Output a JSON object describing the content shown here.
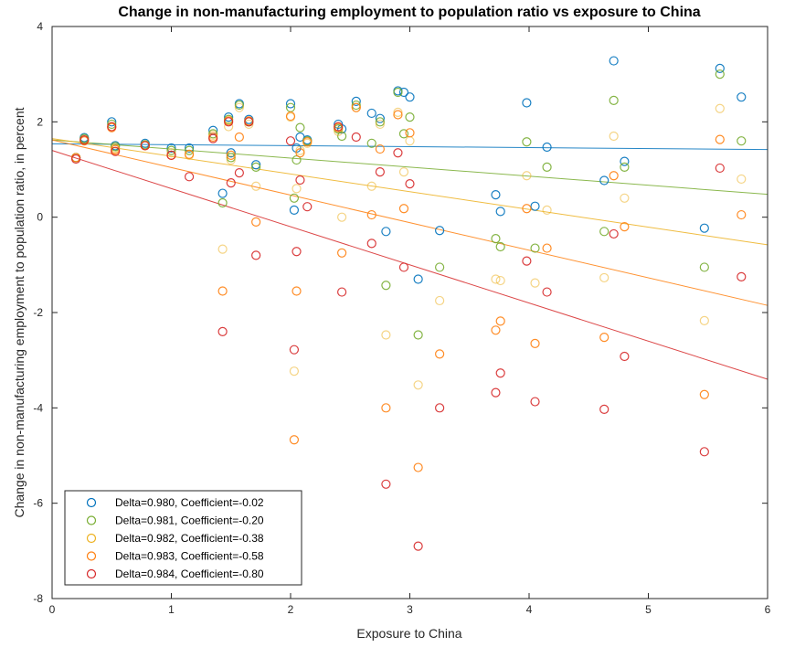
{
  "chart_data": {
    "type": "scatter",
    "title": "Change in non-manufacturing employment to population ratio vs exposure to China",
    "xlabel": "Exposure to China",
    "ylabel": "Change in non-manufacturing employment to population ratio, in percent",
    "xlim": [
      0,
      6
    ],
    "ylim": [
      -8,
      4
    ],
    "xticks": [
      "0",
      "1",
      "2",
      "3",
      "4",
      "5",
      "6"
    ],
    "yticks": [
      "-8",
      "-6",
      "-4",
      "-2",
      "0",
      "2",
      "4"
    ],
    "grid": false,
    "legend_position": "bottom-left",
    "x": [
      0.2,
      0.27,
      0.5,
      0.53,
      0.78,
      1.0,
      1.15,
      1.35,
      1.43,
      1.48,
      1.5,
      1.57,
      1.65,
      1.71,
      2.0,
      2.03,
      2.05,
      2.08,
      2.14,
      2.4,
      2.43,
      2.55,
      2.68,
      2.75,
      2.8,
      2.9,
      2.95,
      3.0,
      3.07,
      3.25,
      3.72,
      3.76,
      3.98,
      4.05,
      4.15,
      4.63,
      4.71,
      4.8,
      5.47,
      5.6,
      5.78
    ],
    "series": [
      {
        "name": "Delta=0.980, Coefficient=-0.02",
        "color": "#0072BD",
        "values": [
          1.25,
          1.67,
          2.0,
          1.5,
          1.55,
          1.45,
          1.45,
          1.82,
          0.5,
          2.1,
          1.35,
          2.38,
          2.05,
          1.1,
          2.38,
          0.15,
          1.45,
          1.68,
          1.62,
          1.95,
          1.85,
          2.43,
          2.18,
          2.07,
          -0.3,
          2.65,
          2.62,
          2.52,
          -1.3,
          -0.28,
          0.47,
          0.12,
          2.4,
          0.23,
          1.47,
          0.77,
          3.28,
          1.17,
          -0.23,
          3.12,
          2.52
        ],
        "trend": [
          1.54,
          1.42
        ]
      },
      {
        "name": "Delta=0.981, Coefficient=-0.20",
        "color": "#77AC30",
        "values": [
          1.25,
          1.65,
          1.95,
          1.48,
          1.52,
          1.4,
          1.4,
          1.75,
          0.3,
          2.05,
          1.25,
          2.35,
          2.0,
          1.05,
          2.3,
          0.4,
          1.2,
          1.88,
          1.6,
          1.85,
          1.7,
          2.35,
          1.55,
          2.0,
          -1.43,
          2.62,
          1.75,
          2.1,
          -2.47,
          -1.05,
          -0.45,
          -0.62,
          1.58,
          -0.65,
          1.05,
          -0.3,
          2.45,
          1.05,
          -1.05,
          3.0,
          1.6
        ],
        "trend": [
          1.62,
          0.48
        ]
      },
      {
        "name": "Delta=0.982, Coefficient=-0.38",
        "color": "#EDB120",
        "values": [
          1.25,
          1.62,
          1.9,
          1.45,
          1.5,
          1.35,
          1.3,
          1.72,
          -0.67,
          1.9,
          1.2,
          2.3,
          1.95,
          0.65,
          2.1,
          -3.23,
          0.6,
          1.4,
          1.55,
          1.8,
          0.0,
          2.3,
          0.65,
          1.95,
          -2.47,
          2.2,
          0.95,
          1.6,
          -3.52,
          -1.75,
          -1.3,
          -1.33,
          0.87,
          -1.38,
          0.15,
          -1.27,
          1.7,
          0.4,
          -2.17,
          2.28,
          0.8
        ],
        "trend": [
          1.65,
          -0.58
        ]
      },
      {
        "name": "Delta=0.983, Coefficient=-0.58",
        "color": "#FF7F0E",
        "values": [
          1.25,
          1.6,
          1.88,
          1.42,
          1.5,
          1.3,
          1.32,
          1.68,
          -1.55,
          2.02,
          1.3,
          1.68,
          2.02,
          -0.1,
          2.12,
          -4.67,
          -1.55,
          1.35,
          1.58,
          1.88,
          -0.75,
          2.3,
          0.05,
          1.43,
          -4.0,
          2.15,
          0.18,
          1.77,
          -5.25,
          -2.87,
          -2.37,
          -2.18,
          0.18,
          -2.65,
          -0.65,
          -2.52,
          0.87,
          -0.2,
          -3.72,
          1.63,
          0.05
        ],
        "trend": [
          1.62,
          -1.85
        ]
      },
      {
        "name": "Delta=0.984, Coefficient=-0.80",
        "color": "#D62728",
        "values": [
          1.22,
          1.62,
          1.9,
          1.38,
          1.5,
          1.3,
          0.85,
          1.65,
          -2.4,
          2.0,
          0.72,
          0.93,
          2.0,
          -0.8,
          1.6,
          -2.78,
          -0.72,
          0.78,
          0.22,
          1.9,
          -1.57,
          1.68,
          -0.55,
          0.95,
          -5.6,
          1.35,
          -1.05,
          0.7,
          -6.9,
          -4.0,
          -3.68,
          -3.27,
          -0.92,
          -3.87,
          -1.57,
          -4.03,
          -0.35,
          -2.92,
          -4.92,
          1.03,
          -1.25
        ],
        "trend": [
          1.4,
          -3.4
        ]
      }
    ]
  }
}
